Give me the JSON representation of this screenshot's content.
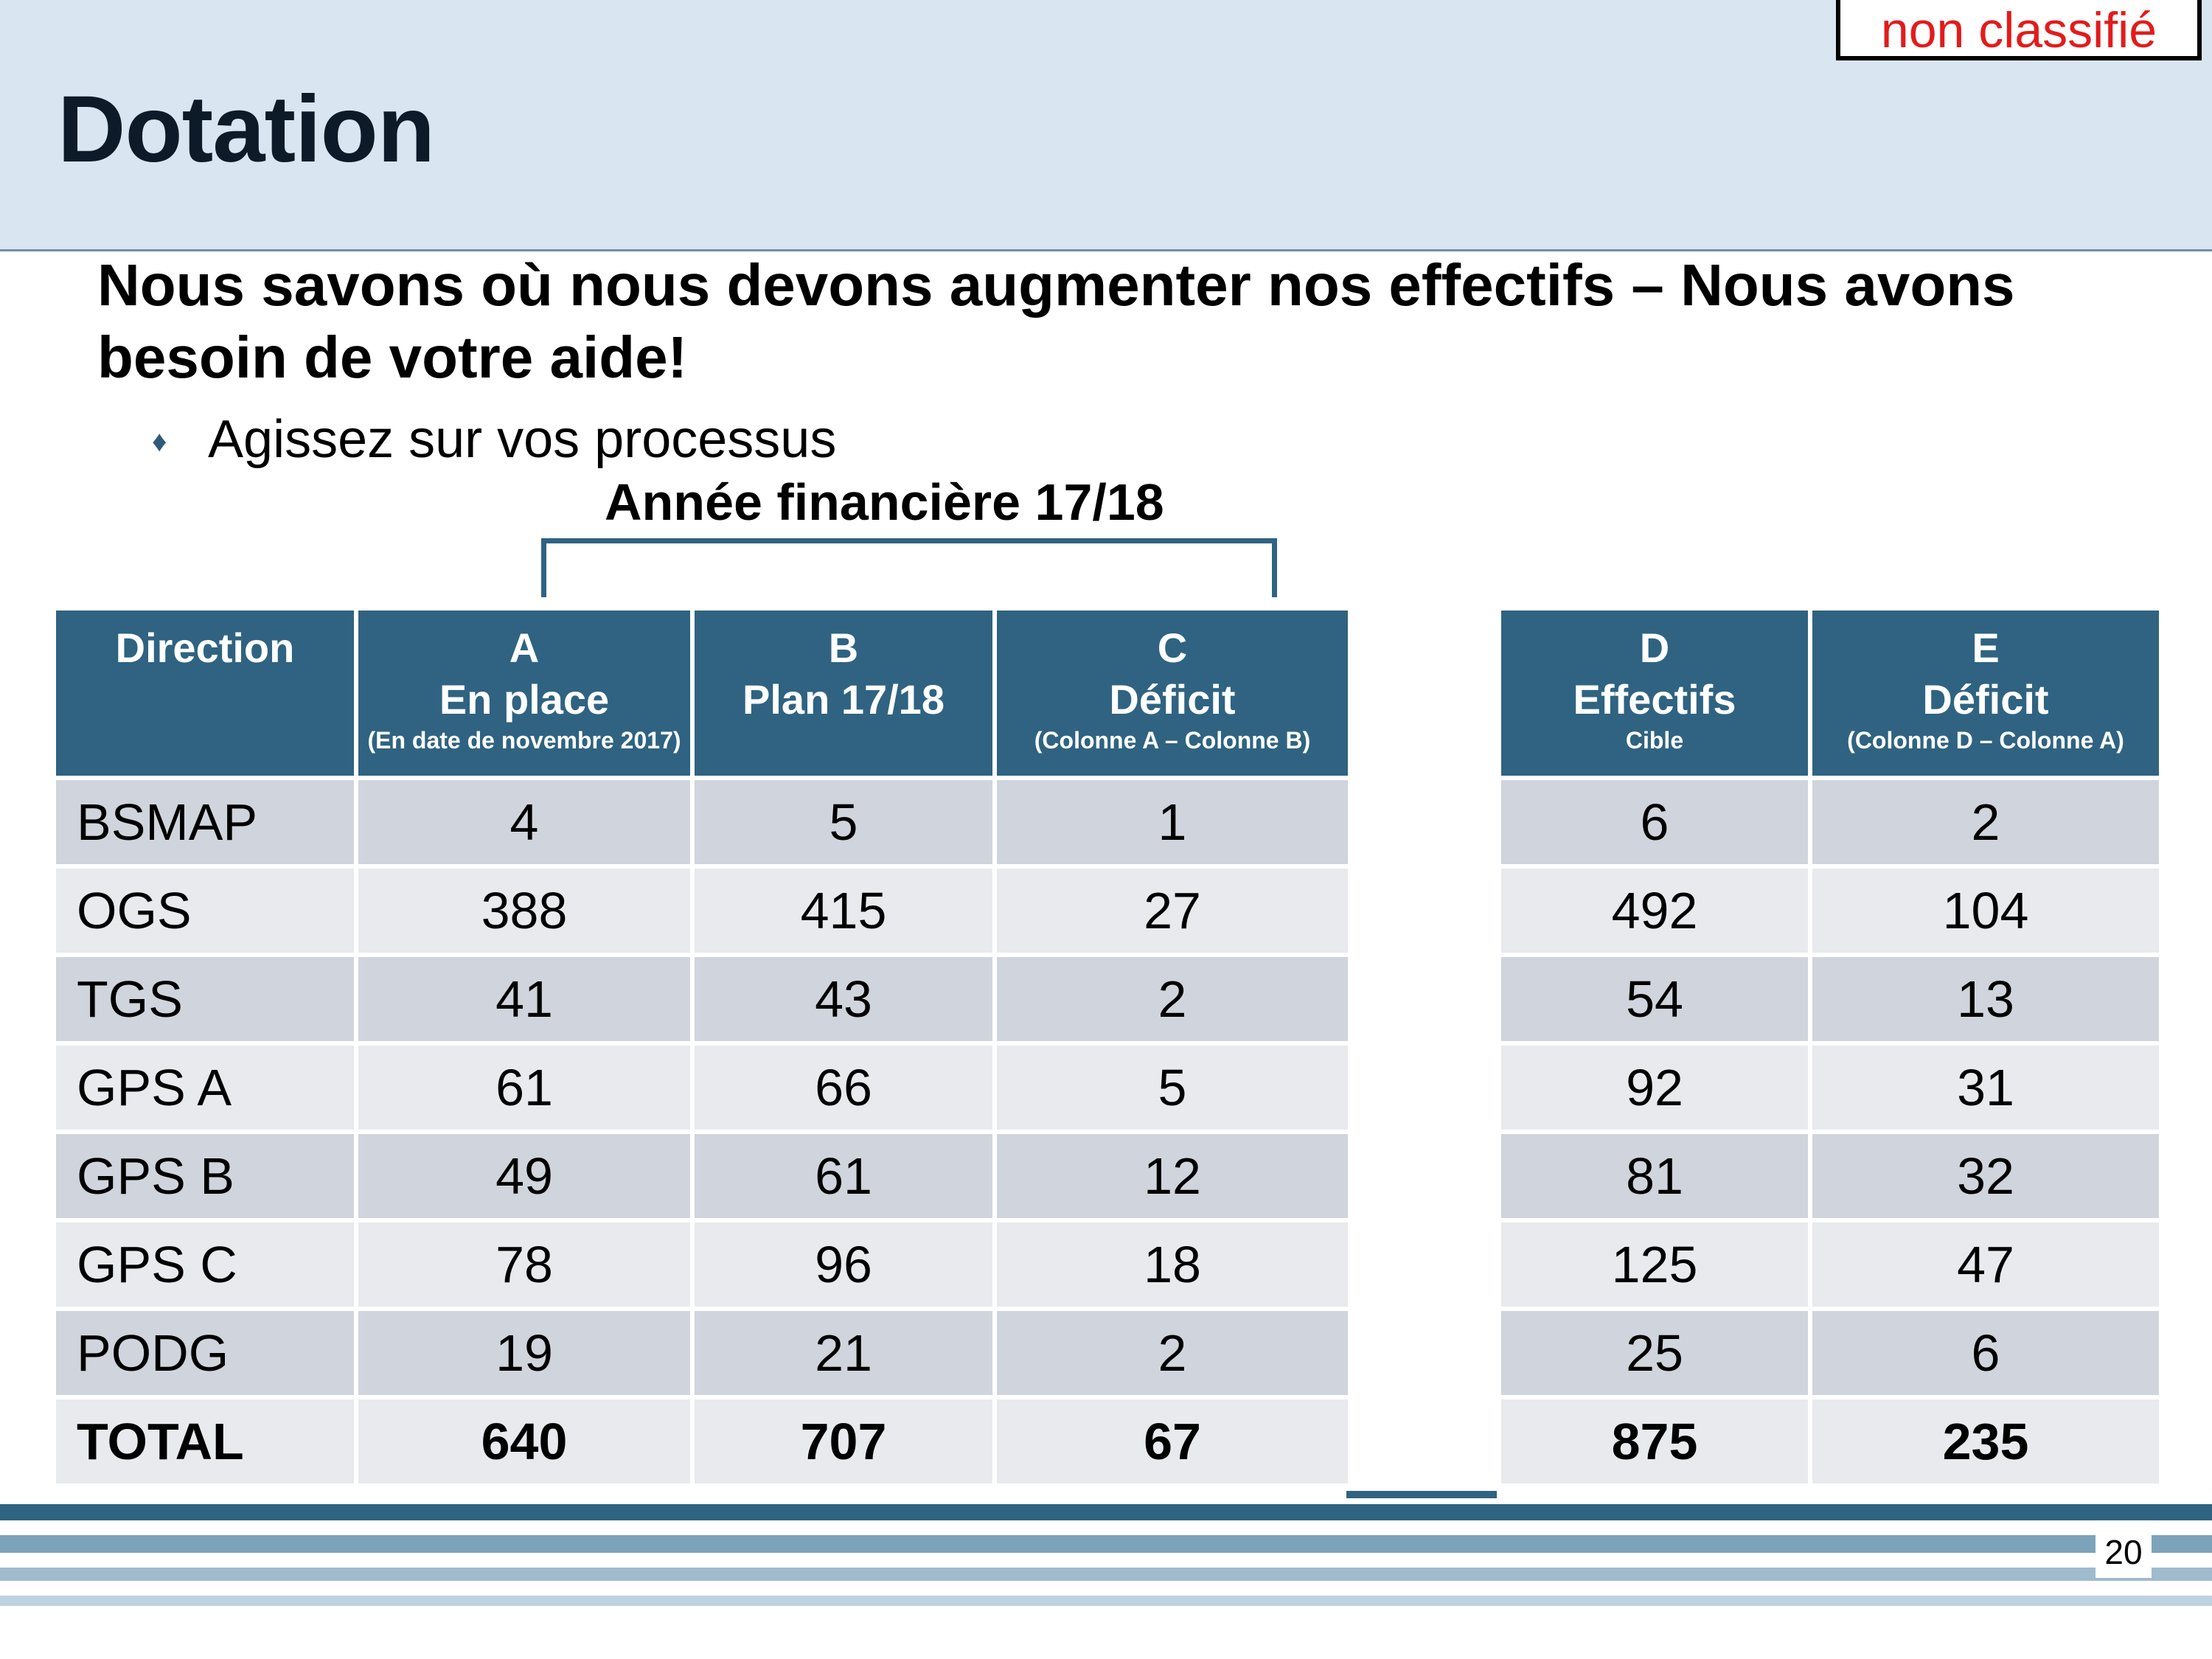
{
  "classification": "non classifié",
  "title": "Dotation",
  "heading": "Nous savons où nous devons augmenter nos effectifs – Nous avons besoin de votre aide!",
  "bullet": {
    "icon": "diamond-bullet-icon",
    "text": "Agissez sur vos processus"
  },
  "year_label": "Année financière 17/18",
  "table": {
    "headers": [
      {
        "letter": "",
        "label": "Direction",
        "sub": ""
      },
      {
        "letter": "A",
        "label": "En place",
        "sub": "(En date de novembre 2017)"
      },
      {
        "letter": "B",
        "label": "Plan 17/18",
        "sub": ""
      },
      {
        "letter": "C",
        "label": "Déficit",
        "sub": "(Colonne A – Colonne B)"
      },
      {
        "letter": "D",
        "label": "Effectifs",
        "sub": "Cible"
      },
      {
        "letter": "E",
        "label": "Déficit",
        "sub": "(Colonne D – Colonne A)"
      }
    ],
    "rows": [
      {
        "direction": "BSMAP",
        "a": "4",
        "b": "5",
        "c": "1",
        "d": "6",
        "e": "2"
      },
      {
        "direction": "OGS",
        "a": "388",
        "b": "415",
        "c": "27",
        "d": "492",
        "e": "104"
      },
      {
        "direction": "TGS",
        "a": "41",
        "b": "43",
        "c": "2",
        "d": "54",
        "e": "13"
      },
      {
        "direction": "GPS A",
        "a": "61",
        "b": "66",
        "c": "5",
        "d": "92",
        "e": "31"
      },
      {
        "direction": "GPS B",
        "a": "49",
        "b": "61",
        "c": "12",
        "d": "81",
        "e": "32"
      },
      {
        "direction": "GPS C",
        "a": "78",
        "b": "96",
        "c": "18",
        "d": "125",
        "e": "47"
      },
      {
        "direction": "PODG",
        "a": "19",
        "b": "21",
        "c": "2",
        "d": "25",
        "e": "6"
      }
    ],
    "total": {
      "direction": "TOTAL",
      "a": "640",
      "b": "707",
      "c": "67",
      "d": "875",
      "e": "235"
    }
  },
  "page_number": "20",
  "colors": {
    "header_band": "#d9e5f0",
    "table_header": "#2f6381",
    "row_dark": "#d0d4dc",
    "row_light": "#e8eaee",
    "classification_text": "#e31b1b"
  }
}
